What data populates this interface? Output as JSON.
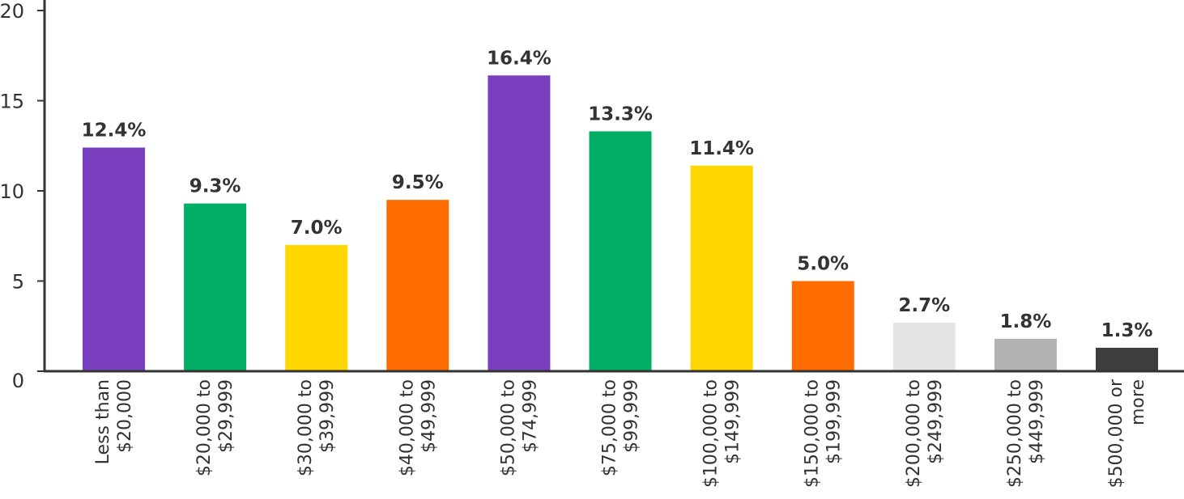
{
  "chart_data": {
    "type": "bar",
    "title": "",
    "xlabel": "",
    "ylabel": "",
    "ylim": [
      0,
      20
    ],
    "yticks": [
      0,
      5,
      10,
      15,
      20
    ],
    "grid": false,
    "categories": [
      [
        "Less than",
        "$20,000"
      ],
      [
        "$20,000 to",
        "$29,999"
      ],
      [
        "$30,000 to",
        "$39,999"
      ],
      [
        "$40,000 to",
        "$49,999"
      ],
      [
        "$50,000 to",
        "$74,999"
      ],
      [
        "$75,000 to",
        "$99,999"
      ],
      [
        "$100,000 to",
        "$149,999"
      ],
      [
        "$150,000 to",
        "$199,999"
      ],
      [
        "$200,000 to",
        "$249,999"
      ],
      [
        "$250,000 to",
        "$449,999"
      ],
      [
        "$500,000 or",
        "more"
      ]
    ],
    "values": [
      12.4,
      9.3,
      7.0,
      9.5,
      16.4,
      13.3,
      11.4,
      5.0,
      2.7,
      1.8,
      1.3
    ],
    "value_labels": [
      "12.4%",
      "9.3%",
      "7.0%",
      "9.5%",
      "16.4%",
      "13.3%",
      "11.4%",
      "5.0%",
      "2.7%",
      "1.8%",
      "1.3%"
    ],
    "colors": [
      "#7a3fbe",
      "#00ae66",
      "#ffd600",
      "#ff6d00",
      "#7a3fbe",
      "#00ae66",
      "#ffd600",
      "#ff6d00",
      "#e4e4e4",
      "#b2b2b2",
      "#3d3d3d"
    ]
  }
}
